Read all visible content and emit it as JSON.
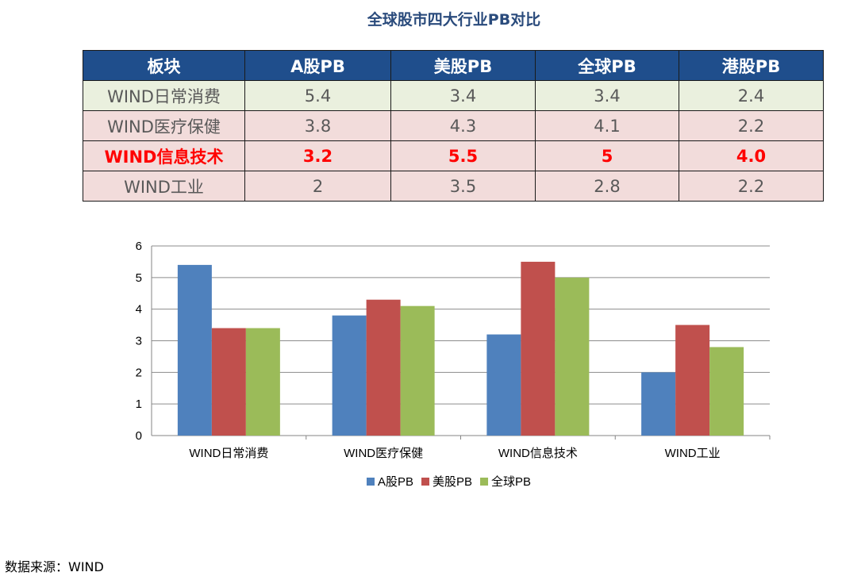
{
  "title": "全球股市四大行业PB对比",
  "table": {
    "headers": [
      "板块",
      "A股PB",
      "美股PB",
      "全球PB",
      "港股PB"
    ],
    "rows": [
      [
        "WIND日常消费",
        "5.4",
        "3.4",
        "3.4",
        "2.4"
      ],
      [
        "WIND医疗保健",
        "3.8",
        "4.3",
        "4.1",
        "2.2"
      ],
      [
        "WIND信息技术",
        "3.2",
        "5.5",
        "5",
        "4.0"
      ],
      [
        "WIND工业",
        "2",
        "3.5",
        "2.8",
        "2.2"
      ]
    ],
    "highlight_row": 2,
    "highlight_color": "#ff0000"
  },
  "chart_data": {
    "type": "bar",
    "title": "",
    "xlabel": "",
    "ylabel": "",
    "categories": [
      "WIND日常消费",
      "WIND医疗保健",
      "WIND信息技术",
      "WIND工业"
    ],
    "series": [
      {
        "name": "A股PB",
        "values": [
          5.4,
          3.8,
          3.2,
          2
        ],
        "color": "#4f81bd"
      },
      {
        "name": "美股PB",
        "values": [
          3.4,
          4.3,
          5.5,
          3.5
        ],
        "color": "#c0504d"
      },
      {
        "name": "全球PB",
        "values": [
          3.4,
          4.1,
          5,
          2.8
        ],
        "color": "#9bbb59"
      }
    ],
    "ylim": [
      0,
      6
    ],
    "yticks": [
      0,
      1,
      2,
      3,
      4,
      5,
      6
    ],
    "grid": true,
    "legend": "bottom"
  },
  "source": "数据来源：WIND"
}
